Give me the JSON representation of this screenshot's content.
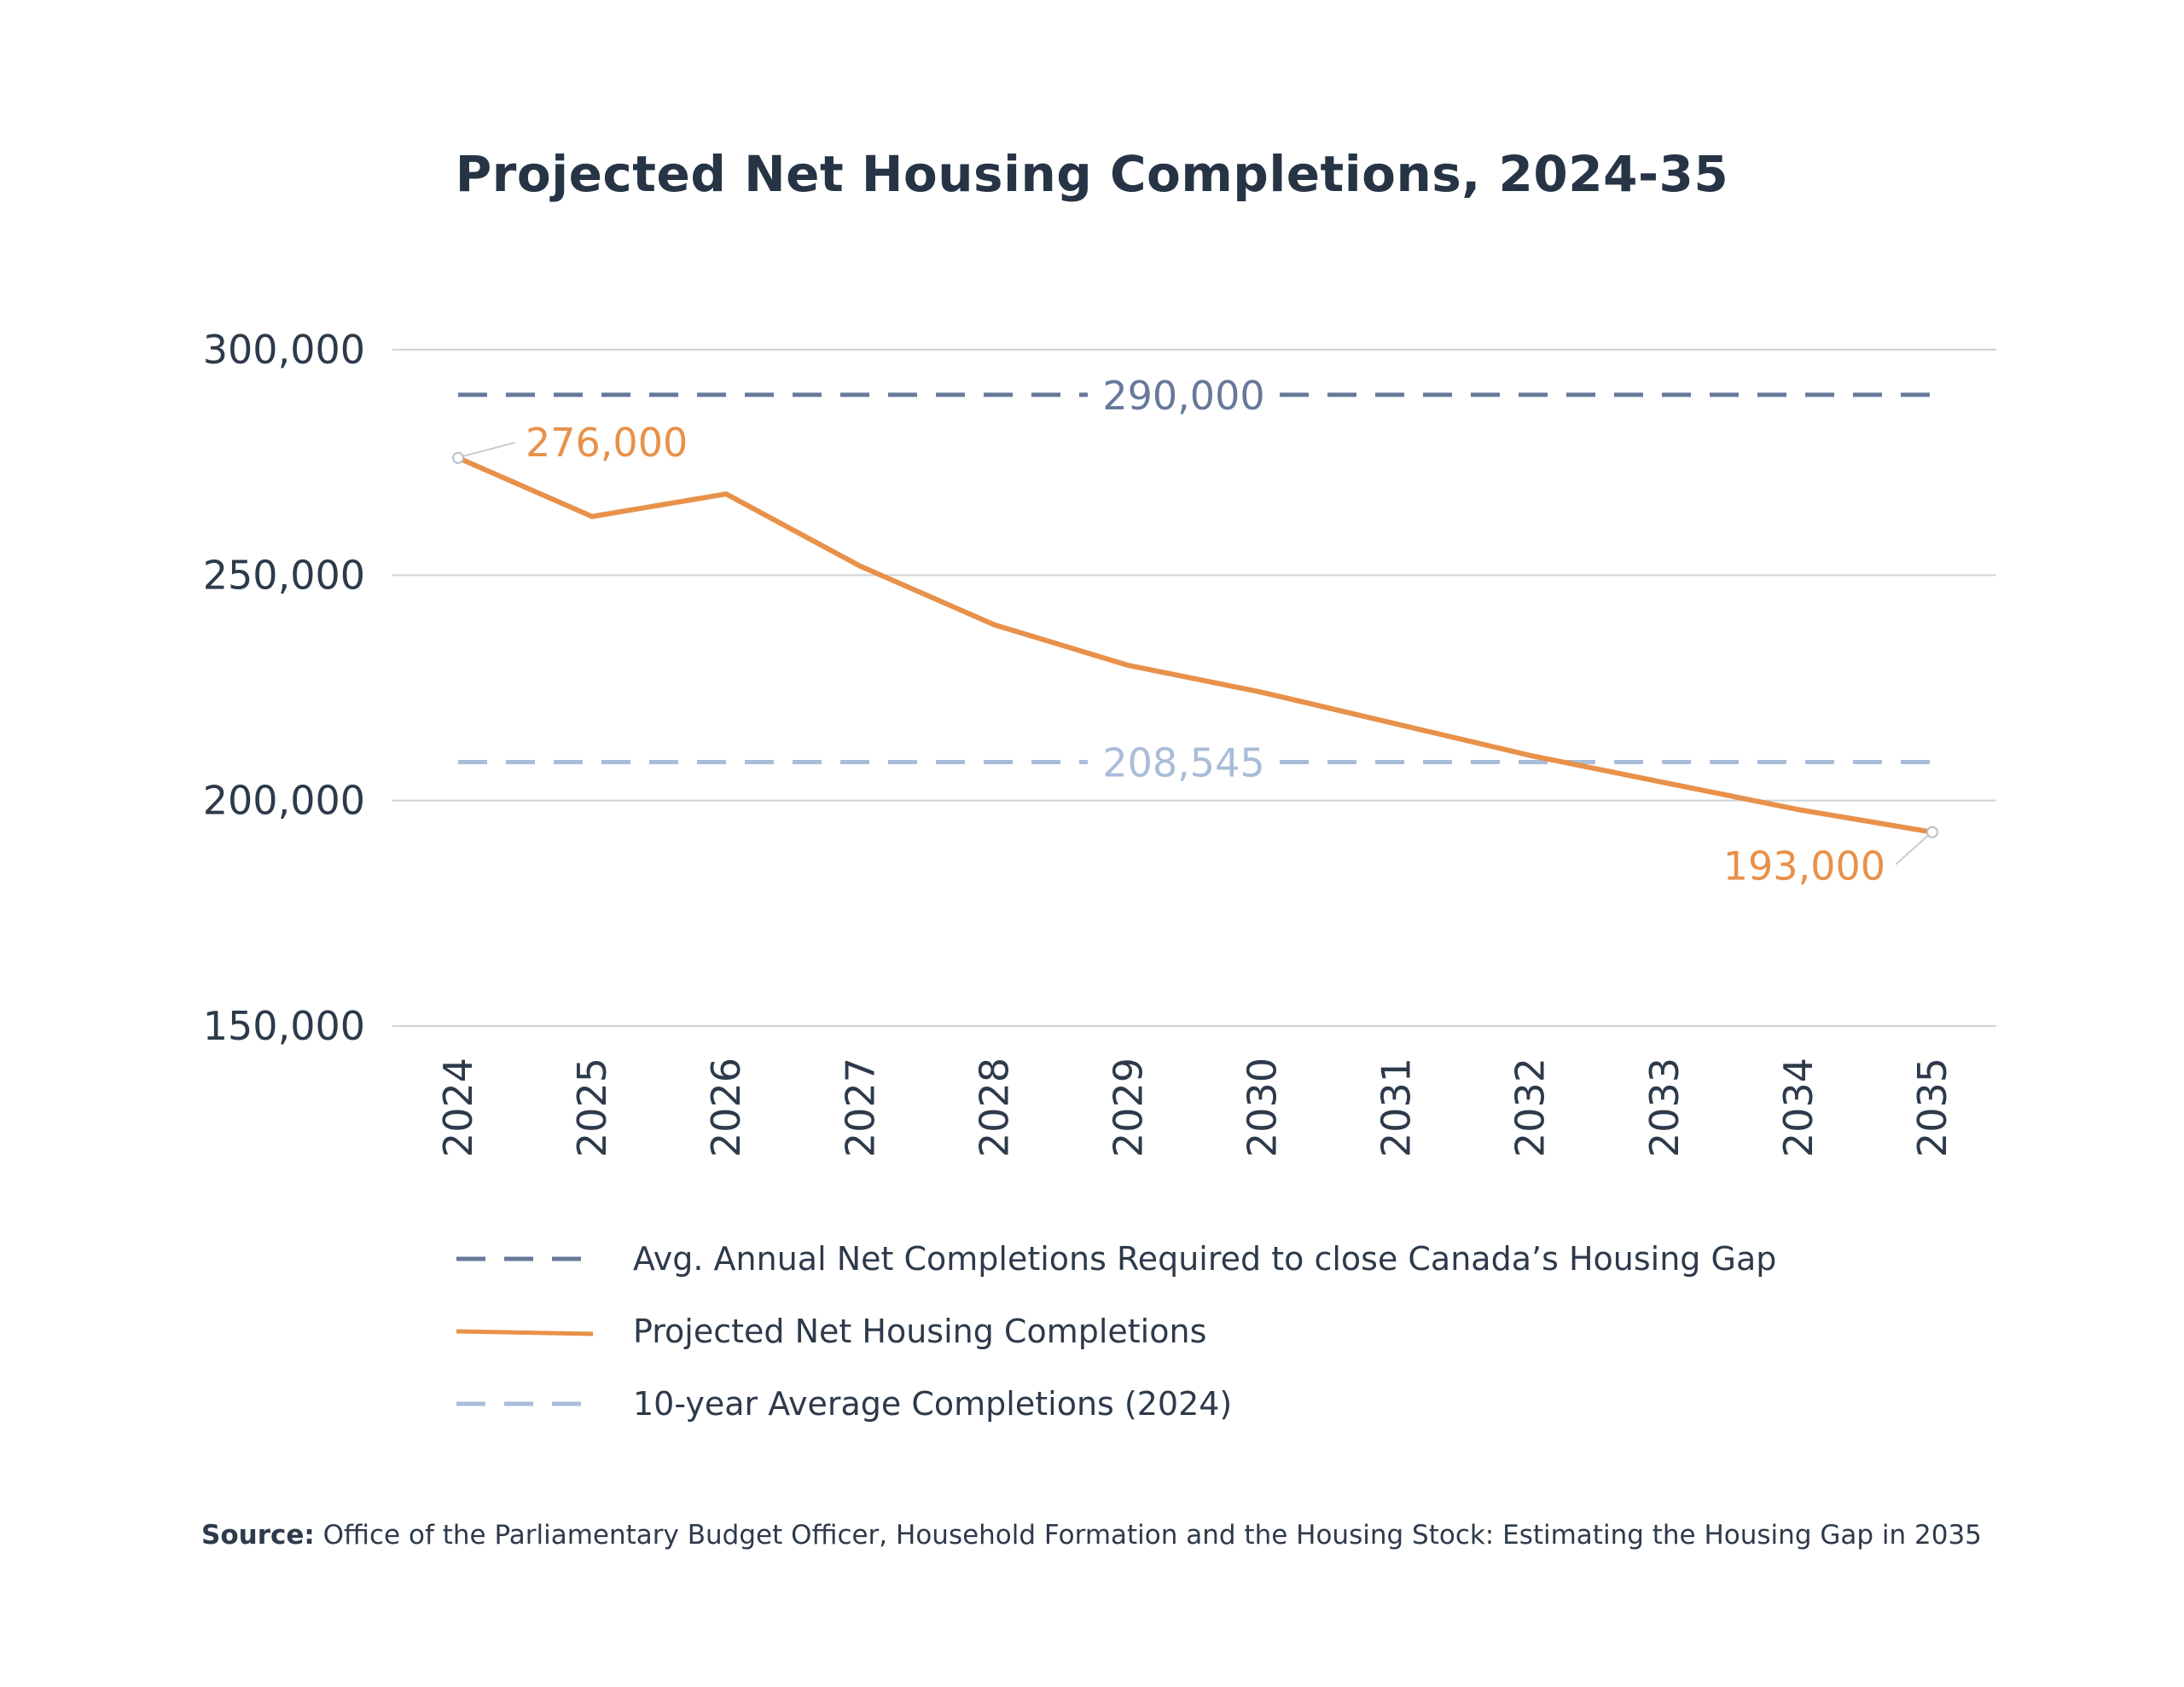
{
  "chart_data": {
    "type": "line",
    "title": "Projected Net Housing Completions, 2024-35",
    "xlabel": "",
    "ylabel": "",
    "x": [
      "2024",
      "2025",
      "2026",
      "2027",
      "2028",
      "2029",
      "2030",
      "2031",
      "2032",
      "2033",
      "2034",
      "2035"
    ],
    "ylim": [
      150000,
      300000
    ],
    "yticks": [
      300000,
      250000,
      200000,
      150000
    ],
    "ytick_labels": [
      "300,000",
      "250,000",
      "200,000",
      "150,000"
    ],
    "grid": true,
    "series": [
      {
        "name": "Projected Net Housing Completions",
        "style": "solid",
        "color": "#e8914a",
        "values": [
          276000,
          263000,
          268000,
          252000,
          239000,
          230000,
          224000,
          217000,
          210000,
          204000,
          198000,
          193000
        ]
      },
      {
        "name": "Avg. Annual Net Completions Required to close Canada’s Housing Gap",
        "style": "dashed",
        "color": "#67799a",
        "values": [
          290000,
          290000,
          290000,
          290000,
          290000,
          290000,
          290000,
          290000,
          290000,
          290000,
          290000,
          290000
        ]
      },
      {
        "name": "10-year Average Completions (2024)",
        "style": "dashed",
        "color": "#a9bcd9",
        "values": [
          208545,
          208545,
          208545,
          208545,
          208545,
          208545,
          208545,
          208545,
          208545,
          208545,
          208545,
          208545
        ]
      }
    ],
    "annotations": [
      {
        "text": "290,000",
        "series": 1,
        "color": "#67799a"
      },
      {
        "text": "208,545",
        "series": 2,
        "color": "#a9bcd9"
      },
      {
        "text": "276,000",
        "x": "2024",
        "y": 276000,
        "color": "#e8914a"
      },
      {
        "text": "193,000",
        "x": "2035",
        "y": 193000,
        "color": "#e8914a"
      }
    ],
    "legend": {
      "position": "bottom",
      "entries": [
        "Avg. Annual Net Completions Required to close Canada’s Housing Gap",
        "Projected Net Housing Completions",
        "10-year Average Completions (2024)"
      ]
    }
  },
  "source": {
    "label": "Source:",
    "text": "Office of the Parliamentary Budget Officer, Household Formation and the Housing Stock: Estimating the Housing Gap in 2035"
  }
}
